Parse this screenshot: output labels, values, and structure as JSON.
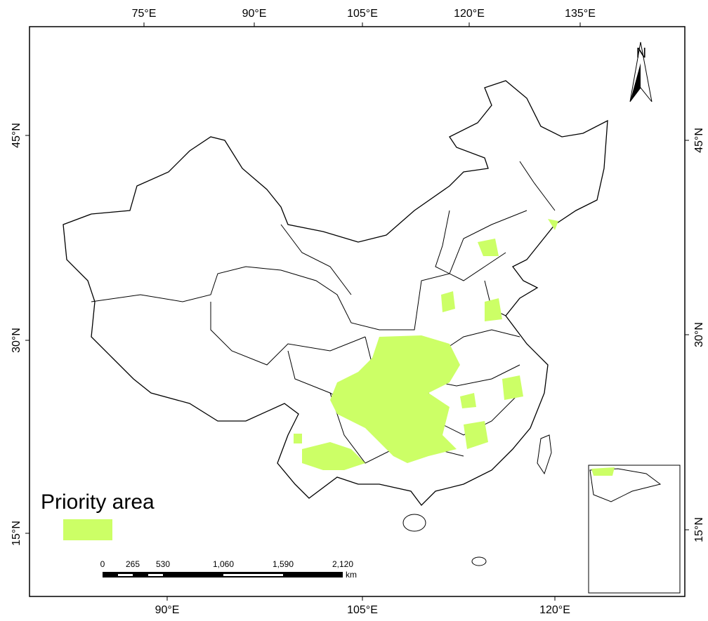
{
  "map": {
    "top_ticks": [
      "75°E",
      "90°E",
      "105°E",
      "120°E",
      "135°E"
    ],
    "bottom_ticks": [
      "90°E",
      "105°E",
      "120°E"
    ],
    "left_ticks": [
      "45°N",
      "30°N",
      "15°N"
    ],
    "right_ticks": [
      "45°N",
      "30°N",
      "15°N"
    ],
    "north": "N",
    "legend": {
      "title": "Priority area"
    },
    "scale_bar": {
      "labels": [
        "0",
        "265",
        "530",
        "1,060",
        "1,590",
        "2,120"
      ],
      "unit": "km"
    }
  }
}
